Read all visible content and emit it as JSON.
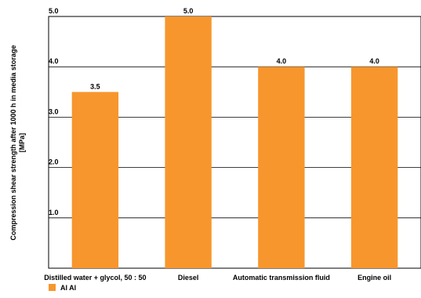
{
  "chart_data": {
    "type": "bar",
    "title": "",
    "ylabel_lines": [
      "Compression shear strength after 1000 h in media storage",
      "[MPa]"
    ],
    "xlabel": "",
    "categories": [
      "Distilled water + glycol, 50 : 50",
      "Diesel",
      "Automatic transmission fluid",
      "Engine oil"
    ],
    "series": [
      {
        "name": "Al Al",
        "values": [
          3.5,
          5.0,
          4.0,
          4.0
        ],
        "color": "#f7962d"
      }
    ],
    "data_labels": [
      "3.5",
      "5.0",
      "4.0",
      "4.0"
    ],
    "yticks": [
      "1.0",
      "2.0",
      "3.0",
      "4.0",
      "5.0"
    ],
    "ylim": [
      0,
      5.0
    ],
    "grid": true,
    "legend_position": "bottom-left"
  }
}
